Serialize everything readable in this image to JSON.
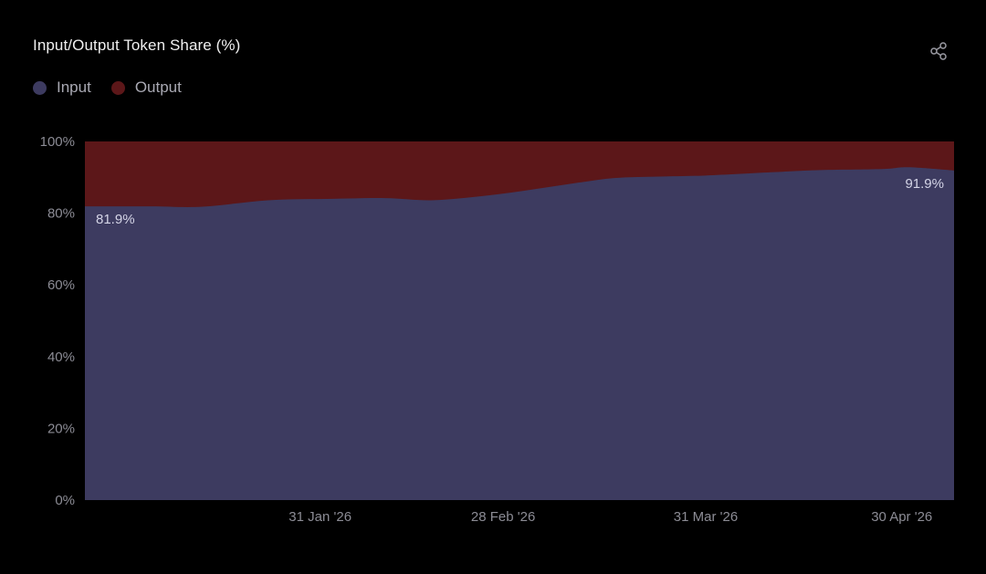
{
  "title": "Input/Output Token Share (%)",
  "icons": {
    "share": "share-icon"
  },
  "legend": [
    {
      "label": "Input",
      "color": "#3d3b60"
    },
    {
      "label": "Output",
      "color": "#5c1719"
    }
  ],
  "colors": {
    "background": "#000000",
    "input": "#3d3b60",
    "output": "#5c1719",
    "tick_text": "#8c8c95"
  },
  "chart_data": {
    "type": "area",
    "stacked": true,
    "percent": true,
    "title": "Input/Output Token Share (%)",
    "xlabel": "",
    "ylabel": "",
    "ylim": [
      0,
      100
    ],
    "yticks": [
      0,
      20,
      40,
      60,
      80,
      100
    ],
    "ytick_labels": [
      "0%",
      "20%",
      "40%",
      "60%",
      "80%",
      "100%"
    ],
    "xlim": [
      "2025-12-26",
      "2026-05-08"
    ],
    "xticks": [
      {
        "date": "2026-01-31",
        "label": "31 Jan '26"
      },
      {
        "date": "2026-02-28",
        "label": "28 Feb '26"
      },
      {
        "date": "2026-03-31",
        "label": "31 Mar '26"
      },
      {
        "date": "2026-04-30",
        "label": "30 Apr '26"
      }
    ],
    "grid": false,
    "legend_position": "top-left",
    "x": [
      "2025-12-26",
      "2026-01-05",
      "2026-01-13",
      "2026-01-23",
      "2026-02-02",
      "2026-02-10",
      "2026-02-17",
      "2026-02-24",
      "2026-03-03",
      "2026-03-10",
      "2026-03-17",
      "2026-03-24",
      "2026-03-31",
      "2026-04-10",
      "2026-04-17",
      "2026-04-27",
      "2026-05-01",
      "2026-05-08"
    ],
    "series": [
      {
        "name": "Input",
        "values": [
          81.9,
          81.9,
          81.8,
          83.6,
          84.0,
          84.2,
          83.6,
          84.6,
          86.2,
          88.1,
          89.8,
          90.2,
          90.5,
          91.4,
          92.0,
          92.3,
          92.8,
          91.9
        ]
      },
      {
        "name": "Output",
        "values": [
          18.1,
          18.1,
          18.2,
          16.4,
          16.0,
          15.8,
          16.4,
          15.4,
          13.8,
          11.9,
          10.2,
          9.8,
          9.5,
          8.6,
          8.0,
          7.7,
          7.2,
          8.1
        ]
      }
    ],
    "annotations": [
      {
        "x": "2025-12-26",
        "series": "Input",
        "text": "81.9%"
      },
      {
        "x": "2026-05-08",
        "series": "Input",
        "text": "91.9%"
      }
    ]
  }
}
